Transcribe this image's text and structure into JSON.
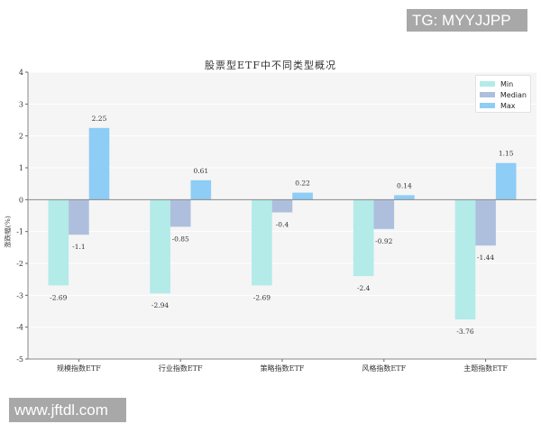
{
  "watermarks": {
    "top_right": "TG: MYYJJPP",
    "bottom_left": "www.jftdl.com"
  },
  "chart_data": {
    "type": "bar",
    "title": "股票型ETF中不同类型概况",
    "xlabel": "",
    "ylabel": "涨跌幅(%)",
    "ylim": [
      -5,
      4
    ],
    "yticks": [
      4,
      3,
      2,
      1,
      0,
      -1,
      -2,
      -3,
      -4,
      -5
    ],
    "grid": true,
    "legend_position": "upper right",
    "categories": [
      "规模指数ETF",
      "行业指数ETF",
      "策略指数ETF",
      "风格指数ETF",
      "主题指数ETF"
    ],
    "series": [
      {
        "name": "Min",
        "color": "#b2ebe8",
        "values": [
          -2.69,
          -2.94,
          -2.69,
          -2.4,
          -3.76
        ]
      },
      {
        "name": "Median",
        "color": "#aebfde",
        "values": [
          -1.1,
          -0.85,
          -0.4,
          -0.92,
          -1.44
        ]
      },
      {
        "name": "Max",
        "color": "#8ecdf5",
        "values": [
          2.25,
          0.61,
          0.22,
          0.14,
          1.15
        ]
      }
    ]
  }
}
